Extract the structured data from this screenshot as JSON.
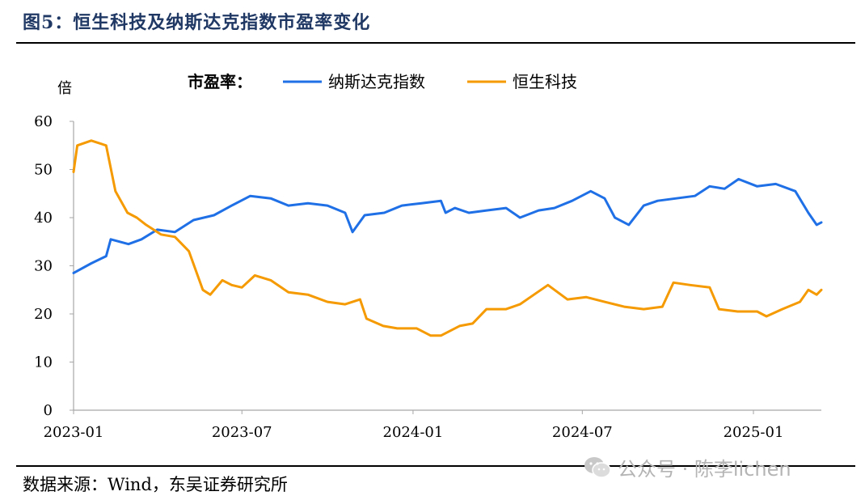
{
  "title": "图5：恒生科技及纳斯达克指数市盈率变化",
  "source": "数据来源：Wind，东吴证券研究所",
  "watermark": "公众号 · 陈李lichen",
  "chart_data": {
    "type": "line",
    "ylabel": "倍",
    "legend_title": "市盈率：",
    "legend_position": "top",
    "ylim": [
      0,
      60
    ],
    "yticks": [
      0,
      10,
      20,
      30,
      40,
      50,
      60
    ],
    "xlim": [
      "2023-01-01",
      "2025-03-15"
    ],
    "xticks": [
      "2023-01",
      "2023-07",
      "2024-01",
      "2024-07",
      "2025-01"
    ],
    "grid": false,
    "series": [
      {
        "name": "纳斯达克指数",
        "color": "#1f6fe6",
        "x": [
          "2023-01-01",
          "2023-01-20",
          "2023-02-05",
          "2023-02-10",
          "2023-03-01",
          "2023-03-15",
          "2023-04-01",
          "2023-04-20",
          "2023-05-10",
          "2023-06-01",
          "2023-06-20",
          "2023-07-10",
          "2023-08-01",
          "2023-08-20",
          "2023-09-10",
          "2023-10-01",
          "2023-10-20",
          "2023-10-28",
          "2023-11-10",
          "2023-12-01",
          "2023-12-20",
          "2024-01-10",
          "2024-01-31",
          "2024-02-05",
          "2024-02-15",
          "2024-03-01",
          "2024-03-20",
          "2024-04-10",
          "2024-04-25",
          "2024-05-15",
          "2024-06-01",
          "2024-06-20",
          "2024-07-10",
          "2024-07-25",
          "2024-08-05",
          "2024-08-20",
          "2024-09-05",
          "2024-09-20",
          "2024-10-10",
          "2024-10-30",
          "2024-11-15",
          "2024-12-01",
          "2024-12-16",
          "2025-01-05",
          "2025-01-25",
          "2025-02-15",
          "2025-03-01",
          "2025-03-10",
          "2025-03-15"
        ],
        "values": [
          28.5,
          30.5,
          32,
          35.5,
          34.5,
          35.5,
          37.5,
          37,
          39.5,
          40.5,
          42.5,
          44.5,
          44,
          42.5,
          43,
          42.5,
          41,
          37,
          40.5,
          41,
          42.5,
          43,
          43.5,
          41,
          42,
          41,
          41.5,
          42,
          40,
          41.5,
          42,
          43.5,
          45.5,
          44,
          40,
          38.5,
          42.5,
          43.5,
          44,
          44.5,
          46.5,
          46,
          48,
          46.5,
          47,
          45.5,
          41,
          38.5,
          39
        ]
      },
      {
        "name": "恒生科技",
        "color": "#f59a00",
        "x": [
          "2023-01-01",
          "2023-01-05",
          "2023-01-20",
          "2023-02-05",
          "2023-02-15",
          "2023-02-28",
          "2023-03-10",
          "2023-03-20",
          "2023-04-05",
          "2023-04-20",
          "2023-05-05",
          "2023-05-20",
          "2023-05-28",
          "2023-06-10",
          "2023-06-20",
          "2023-07-01",
          "2023-07-15",
          "2023-08-01",
          "2023-08-20",
          "2023-09-10",
          "2023-10-01",
          "2023-10-20",
          "2023-11-05",
          "2023-11-12",
          "2023-11-30",
          "2023-12-15",
          "2024-01-05",
          "2024-01-20",
          "2024-01-31",
          "2024-02-20",
          "2024-03-05",
          "2024-03-20",
          "2024-04-10",
          "2024-04-25",
          "2024-05-10",
          "2024-05-25",
          "2024-06-15",
          "2024-07-05",
          "2024-07-25",
          "2024-08-15",
          "2024-09-05",
          "2024-09-25",
          "2024-10-07",
          "2024-10-25",
          "2024-11-15",
          "2024-11-25",
          "2024-12-15",
          "2025-01-05",
          "2025-01-15",
          "2025-02-01",
          "2025-02-20",
          "2025-03-01",
          "2025-03-10",
          "2025-03-15"
        ],
        "values": [
          49.5,
          55,
          56,
          55,
          45.5,
          41,
          40,
          38.5,
          36.5,
          36,
          33,
          25,
          24,
          27,
          26,
          25.5,
          28,
          27,
          24.5,
          24,
          22.5,
          22,
          23,
          19,
          17.5,
          17,
          17,
          15.5,
          15.5,
          17.5,
          18,
          21,
          21,
          22,
          24,
          26,
          23,
          23.5,
          22.5,
          21.5,
          21,
          21.5,
          26.5,
          26,
          25.5,
          21,
          20.5,
          20.5,
          19.5,
          21,
          22.5,
          25,
          24,
          25
        ]
      }
    ]
  }
}
